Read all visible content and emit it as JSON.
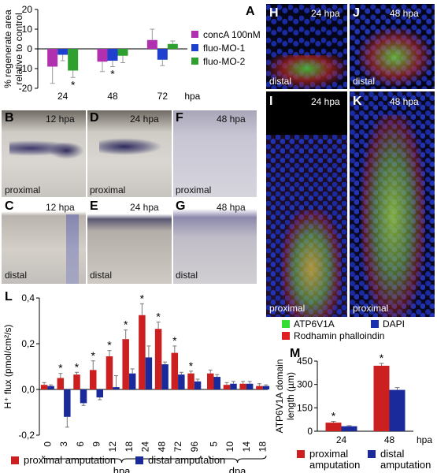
{
  "panel_letters": {
    "A": "A",
    "B": "B",
    "C": "C",
    "D": "D",
    "E": "E",
    "F": "F",
    "G": "G",
    "H": "H",
    "I": "I",
    "J": "J",
    "K": "K",
    "L": "L",
    "M": "M"
  },
  "panel_a": {
    "ylabel_lines": [
      "% regenerate area",
      "relative to control"
    ],
    "yticks": [
      "20",
      "10",
      "0",
      "-10",
      "-20"
    ],
    "xticks": [
      "24",
      "48",
      "72"
    ],
    "x_unit": "hpa",
    "legend": [
      {
        "label": "concA 100nM",
        "color": "#b030b0"
      },
      {
        "label": "fluo-MO-1",
        "color": "#1f3fcf"
      },
      {
        "label": "fluo-MO-2",
        "color": "#2f9f2f"
      }
    ]
  },
  "ish_panels": [
    {
      "letter": "B",
      "time": "12 hpa",
      "region": "proximal"
    },
    {
      "letter": "D",
      "time": "24 hpa",
      "region": "proximal"
    },
    {
      "letter": "F",
      "time": "48 hpa",
      "region": "proximal"
    },
    {
      "letter": "C",
      "time": "12 hpa",
      "region": "distal"
    },
    {
      "letter": "E",
      "time": "24 hpa",
      "region": "distal"
    },
    {
      "letter": "G",
      "time": "48 hpa",
      "region": "distal"
    }
  ],
  "fluor_panels": [
    {
      "letter": "H",
      "time": "24 hpa",
      "region": "distal"
    },
    {
      "letter": "J",
      "time": "48 hpa",
      "region": "distal"
    },
    {
      "letter": "I",
      "time": "24 hpa",
      "region": "proximal"
    },
    {
      "letter": "K",
      "time": "48 hpa",
      "region": "proximal"
    }
  ],
  "fluor_legend": [
    {
      "label": "ATP6V1A",
      "color": "#33dd33"
    },
    {
      "label": "DAPI",
      "color": "#1a2fb0"
    },
    {
      "label": "Rodhamin phalloindin",
      "color": "#e02020"
    }
  ],
  "panel_l": {
    "ylabel": "H⁺ flux  (pmol/cm²/s)",
    "hpa_label": "hpa",
    "dpa_label": "dpa",
    "legend": [
      {
        "label": "proximal amputation",
        "color": "#cc1f1f"
      },
      {
        "label": "distal amputation",
        "color": "#1a2a9a"
      }
    ]
  },
  "panel_m": {
    "ylabel_lines": [
      "ATP6V1A domain",
      "length (µm)"
    ],
    "x_unit": "hpa",
    "legend": [
      {
        "label_lines": [
          "proximal",
          "amputation"
        ],
        "color": "#cc1f1f"
      },
      {
        "label_lines": [
          "distal",
          "amputation"
        ],
        "color": "#1a2a9a"
      }
    ]
  },
  "chart_data": [
    {
      "panel": "A",
      "type": "bar",
      "categories": [
        "24",
        "48",
        "72"
      ],
      "xlabel": "hpa",
      "ylabel": "% regenerate area relative to control",
      "ylim": [
        -20,
        20
      ],
      "series": [
        {
          "name": "concA 100nM",
          "color": "#b030b0",
          "values": [
            -9,
            -6.5,
            4.5
          ],
          "errors": [
            8.5,
            5,
            5.5
          ]
        },
        {
          "name": "fluo-MO-1",
          "color": "#1f3fcf",
          "values": [
            -3,
            -6,
            -5.5
          ],
          "errors": [
            3,
            3,
            3
          ]
        },
        {
          "name": "fluo-MO-2",
          "color": "#2f9f2f",
          "values": [
            -11,
            -3.5,
            2.5
          ],
          "errors": [
            3.5,
            3.5,
            1.5
          ]
        }
      ],
      "significance": [
        "*",
        "*",
        ""
      ],
      "significance_series": "fluo-MO-2 at 24, fluo-MO-1 at 48"
    },
    {
      "panel": "L",
      "type": "bar",
      "categories": [
        "0",
        "3",
        "6",
        "9",
        "12",
        "18",
        "24",
        "48",
        "72",
        "96",
        "5",
        "10",
        "14",
        "18"
      ],
      "category_units": [
        "hpa",
        "hpa",
        "hpa",
        "hpa",
        "hpa",
        "hpa",
        "hpa",
        "hpa",
        "hpa",
        "hpa",
        "dpa",
        "dpa",
        "dpa",
        "dpa"
      ],
      "ylabel": "H+ flux (pmol/cm2/s)",
      "ylim": [
        -0.2,
        0.4
      ],
      "yticks": [
        "0,4",
        "0,2",
        "0,0",
        "-0,2"
      ],
      "series": [
        {
          "name": "proximal amputation",
          "color": "#cc1f1f",
          "values": [
            0.02,
            0.05,
            0.065,
            0.085,
            0.145,
            0.22,
            0.325,
            0.265,
            0.16,
            0.07,
            0.07,
            0.02,
            0.025,
            0.015
          ],
          "errors": [
            0.01,
            0.02,
            0.01,
            0.04,
            0.025,
            0.04,
            0.05,
            0.03,
            0.03,
            0.01,
            0.015,
            0.01,
            0.01,
            0.01
          ]
        },
        {
          "name": "distal amputation",
          "color": "#1a2a9a",
          "values": [
            0.015,
            -0.12,
            -0.06,
            -0.035,
            0.01,
            0.07,
            0.14,
            0.11,
            0.065,
            0.035,
            0.055,
            0.025,
            0.025,
            0.015
          ],
          "errors": [
            0.005,
            0.045,
            0.01,
            0.01,
            0.05,
            0.02,
            0.05,
            0.01,
            0.01,
            0.01,
            0.01,
            0.01,
            0.01,
            0.005
          ]
        }
      ],
      "significance": [
        "",
        "*",
        "*",
        "*",
        "*",
        "*",
        "*",
        "*",
        "*",
        "*",
        "",
        "",
        "",
        ""
      ]
    },
    {
      "panel": "M",
      "type": "bar",
      "categories": [
        "24",
        "48"
      ],
      "xlabel": "hpa",
      "ylabel": "ATP6V1A domain length (µm)",
      "ylim": [
        0,
        450
      ],
      "yticks": [
        "450",
        "300",
        "150",
        "0"
      ],
      "series": [
        {
          "name": "proximal amputation",
          "color": "#cc1f1f",
          "values": [
            55,
            420
          ],
          "errors": [
            8,
            15
          ]
        },
        {
          "name": "distal amputation",
          "color": "#1a2a9a",
          "values": [
            32,
            265
          ],
          "errors": [
            4,
            15
          ]
        }
      ],
      "significance": [
        "*",
        "*"
      ]
    }
  ]
}
